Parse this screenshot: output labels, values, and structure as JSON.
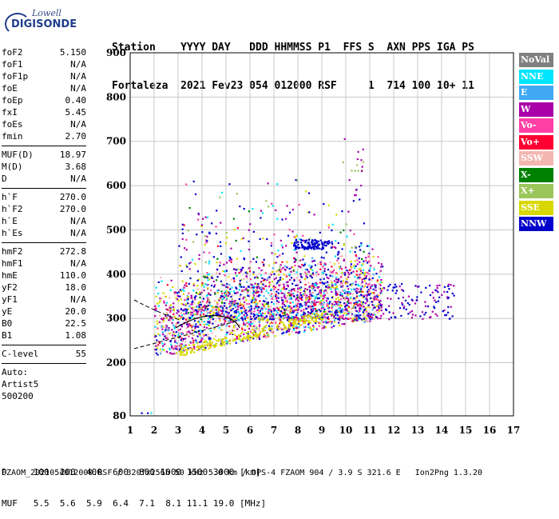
{
  "logo": {
    "line1": "Lowell",
    "line2": "DIGISONDE"
  },
  "header": {
    "row1": "Station    YYYY DAY   DDD HHMMSS P1  FFS S  AXN PPS IGA PS",
    "row2": "Fortaleza  2021 Fev23 054 012000 RSF     1  714 100 10+ 11"
  },
  "params": {
    "group1": [
      {
        "name": "foF2",
        "value": "5.150"
      },
      {
        "name": "foF1",
        "value": "N/A"
      },
      {
        "name": "foF1p",
        "value": "N/A"
      },
      {
        "name": "foE",
        "value": "N/A"
      },
      {
        "name": "foEp",
        "value": "0.40"
      },
      {
        "name": "fxI",
        "value": "5.45"
      },
      {
        "name": "foEs",
        "value": "N/A"
      },
      {
        "name": "fmin",
        "value": "2.70"
      }
    ],
    "group2": [
      {
        "name": "MUF(D)",
        "value": "18.97"
      },
      {
        "name": "M(D)",
        "value": "3.68"
      },
      {
        "name": "D",
        "value": "N/A"
      }
    ],
    "group3": [
      {
        "name": "h`F",
        "value": "270.0"
      },
      {
        "name": "h`F2",
        "value": "270.0"
      },
      {
        "name": "h`E",
        "value": "N/A"
      },
      {
        "name": "h`Es",
        "value": "N/A"
      }
    ],
    "group4": [
      {
        "name": "hmF2",
        "value": "272.8"
      },
      {
        "name": "hmF1",
        "value": "N/A"
      },
      {
        "name": "hmE",
        "value": "110.0"
      },
      {
        "name": "yF2",
        "value": "18.0"
      },
      {
        "name": "yF1",
        "value": "N/A"
      },
      {
        "name": "yE",
        "value": "20.0"
      },
      {
        "name": "B0",
        "value": "22.5"
      },
      {
        "name": "B1",
        "value": "1.08"
      }
    ],
    "clevel": {
      "name": "C-level",
      "value": "55"
    },
    "auto": [
      "Auto:",
      "Artist5",
      "500200"
    ]
  },
  "legend": [
    {
      "label": "NoVal",
      "color": "#808080"
    },
    {
      "label": "NNE",
      "color": "#00e5ff"
    },
    {
      "label": "E",
      "color": "#3fa9f5"
    },
    {
      "label": "W",
      "color": "#aa00aa"
    },
    {
      "label": "Vo-",
      "color": "#ff3fa4"
    },
    {
      "label": "Vo+",
      "color": "#ff0033"
    },
    {
      "label": "SSW",
      "color": "#f4b6b0"
    },
    {
      "label": "X-",
      "color": "#008000"
    },
    {
      "label": "X+",
      "color": "#9bc65a"
    },
    {
      "label": "SSE",
      "color": "#d8d800"
    },
    {
      "label": "NNW",
      "color": "#0000cc"
    }
  ],
  "chart_data": {
    "type": "scatter",
    "title": "",
    "xlabel": "",
    "ylabel": "",
    "xlim": [
      1,
      17
    ],
    "ylim": [
      80,
      900
    ],
    "xticks": [
      1,
      2,
      3,
      4,
      5,
      6,
      7,
      8,
      9,
      10,
      11,
      12,
      13,
      14,
      15,
      16,
      17
    ],
    "yticks": [
      80,
      200,
      300,
      400,
      500,
      600,
      700,
      800,
      900
    ],
    "grid": true,
    "series": [
      {
        "name": "NNW",
        "color": "#0000cc"
      },
      {
        "name": "W",
        "color": "#aa00aa"
      },
      {
        "name": "Vo-",
        "color": "#ff3fa4"
      },
      {
        "name": "Vo+",
        "color": "#ff0033"
      },
      {
        "name": "NNE",
        "color": "#00e5ff"
      },
      {
        "name": "E",
        "color": "#3fa9f5"
      },
      {
        "name": "SSW",
        "color": "#f4b6b0"
      },
      {
        "name": "SSE",
        "color": "#d8d800"
      },
      {
        "name": "X-",
        "color": "#008000"
      },
      {
        "name": "X+",
        "color": "#9bc65a"
      }
    ]
  },
  "footer": {
    "row1": "D     100  200  400  600  800 1000 1500 3000 [km]",
    "row2": "MUF   5.5  5.6  5.9  6.4  7.1  8.1 11.1 19.0 [MHz]",
    "row3": "FZAOM_2021054012000.RSF / 320fx256h 50 kHz 5.0 km / DPS-4 FZAOM 904 / 3.9 S 321.6 E   Ion2Png 1.3.20"
  }
}
